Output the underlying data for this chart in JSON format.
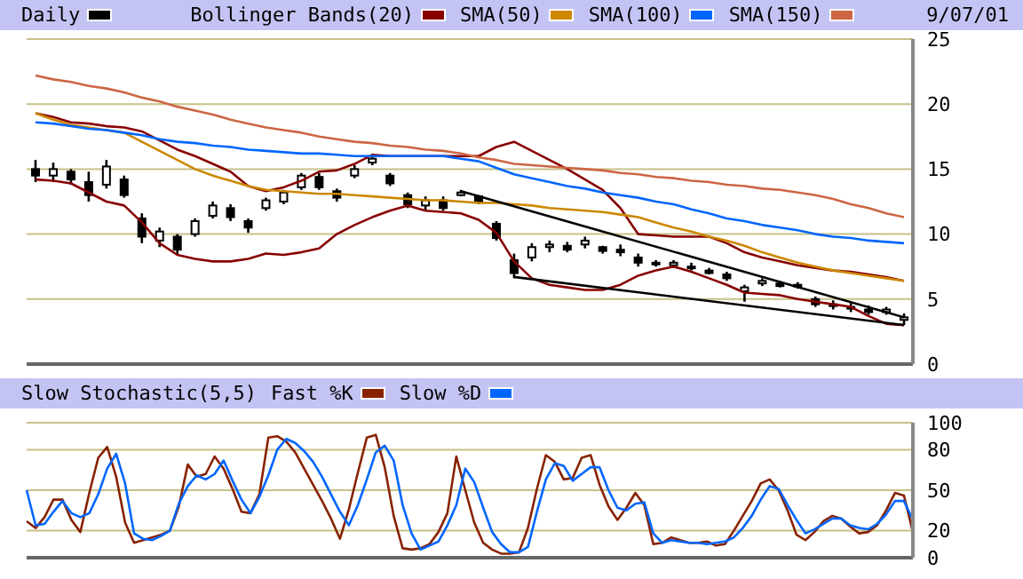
{
  "chart_data": [
    {
      "type": "candlestick",
      "title": "Daily",
      "color": "#000000",
      "legend": "top",
      "annotations": [
        "9/07/01"
      ],
      "grid": "y",
      "tick_labels": "y",
      "categories": [
        null,
        null,
        null,
        null,
        null,
        null,
        null,
        null,
        null,
        null,
        null,
        null,
        null,
        null,
        null,
        null,
        null,
        null,
        null,
        null,
        null,
        null,
        null,
        null,
        null,
        null,
        null,
        null,
        null,
        null,
        null,
        null,
        null,
        null,
        null,
        null,
        null,
        null,
        null,
        null,
        null,
        null,
        null,
        null,
        null,
        null,
        null,
        null,
        null,
        null
      ],
      "ylim": [
        0,
        25
      ],
      "yticks": [
        0,
        5,
        10,
        15,
        20,
        25
      ],
      "ohlc": [
        [
          15.0,
          15.7,
          14.0,
          14.5
        ],
        [
          14.5,
          15.5,
          14.0,
          15.0
        ],
        [
          14.8,
          15.0,
          13.8,
          14.2
        ],
        [
          14.0,
          14.8,
          12.5,
          13.0
        ],
        [
          13.8,
          15.7,
          13.5,
          15.2
        ],
        [
          14.2,
          14.5,
          12.8,
          13.0
        ],
        [
          11.2,
          11.6,
          9.3,
          9.8
        ],
        [
          9.5,
          10.5,
          9.0,
          10.2
        ],
        [
          9.8,
          10.0,
          8.4,
          8.8
        ],
        [
          10.0,
          11.2,
          9.8,
          11.0
        ],
        [
          11.4,
          12.5,
          11.2,
          12.2
        ],
        [
          12.0,
          12.3,
          11.0,
          11.3
        ],
        [
          11.0,
          11.2,
          10.1,
          10.5
        ],
        [
          12.0,
          12.8,
          11.8,
          12.6
        ],
        [
          12.5,
          13.4,
          12.3,
          13.2
        ],
        [
          13.6,
          14.7,
          13.4,
          14.5
        ],
        [
          14.4,
          14.7,
          13.4,
          13.6
        ],
        [
          13.3,
          13.5,
          12.5,
          12.8
        ],
        [
          14.5,
          15.3,
          14.3,
          15.0
        ],
        [
          15.5,
          16.1,
          15.3,
          15.8
        ],
        [
          14.5,
          14.7,
          13.7,
          13.9
        ],
        [
          13.0,
          13.2,
          12.0,
          12.3
        ],
        [
          12.2,
          12.9,
          11.8,
          12.6
        ],
        [
          12.6,
          12.9,
          11.8,
          12.0
        ],
        [
          13.0,
          13.4,
          12.9,
          13.2
        ],
        [
          12.9,
          13.0,
          12.3,
          12.5
        ],
        [
          10.8,
          11.0,
          9.5,
          9.7
        ],
        [
          8.0,
          8.5,
          6.6,
          7.0
        ],
        [
          8.2,
          9.3,
          7.9,
          9.0
        ],
        [
          9.0,
          9.5,
          8.6,
          9.2
        ],
        [
          9.1,
          9.4,
          8.6,
          8.8
        ],
        [
          9.2,
          9.8,
          8.9,
          9.5
        ],
        [
          9.0,
          9.1,
          8.5,
          8.7
        ],
        [
          8.8,
          9.2,
          8.3,
          8.6
        ],
        [
          8.2,
          8.5,
          7.5,
          7.8
        ],
        [
          7.8,
          8.0,
          7.5,
          7.7
        ],
        [
          7.6,
          8.0,
          7.4,
          7.8
        ],
        [
          7.5,
          7.8,
          7.2,
          7.4
        ],
        [
          7.2,
          7.4,
          6.9,
          7.0
        ],
        [
          6.9,
          7.1,
          6.4,
          6.6
        ],
        [
          5.6,
          6.1,
          4.8,
          5.9
        ],
        [
          6.2,
          6.6,
          6.0,
          6.4
        ],
        [
          6.2,
          6.4,
          5.9,
          6.0
        ],
        [
          6.0,
          6.3,
          5.8,
          6.1
        ],
        [
          5.0,
          5.2,
          4.4,
          4.6
        ],
        [
          4.6,
          4.9,
          4.2,
          4.5
        ],
        [
          4.4,
          4.7,
          4.0,
          4.3
        ],
        [
          4.2,
          4.5,
          3.8,
          4.0
        ],
        [
          4.0,
          4.4,
          3.8,
          4.2
        ],
        [
          3.4,
          3.9,
          3.0,
          3.6
        ]
      ],
      "series": [
        {
          "name": "Bollinger Bands(20)",
          "type": "line",
          "color": "#880000",
          "values": [
            19.3,
            19.0,
            18.6,
            18.5,
            18.3,
            18.2,
            17.9,
            17.2,
            16.5,
            16.0,
            15.4,
            14.8,
            13.7,
            13.3,
            13.6,
            14.1,
            14.8,
            14.9,
            15.4,
            16.1,
            16.0,
            16.0,
            16.0,
            16.0,
            16.0,
            16.0,
            16.7,
            17.1,
            16.4,
            15.7,
            15.0,
            14.2,
            13.4,
            12.0,
            10.0,
            9.9,
            9.8,
            9.8,
            9.8,
            9.3,
            8.6,
            8.2,
            7.9,
            7.6,
            7.4,
            7.2,
            7.1,
            6.9,
            6.7,
            6.4
          ]
        },
        {
          "type": "line",
          "color": "#880000",
          "values": [
            14.2,
            14.1,
            13.9,
            13.2,
            12.5,
            12.2,
            10.9,
            9.3,
            8.4,
            8.1,
            7.9,
            7.9,
            8.1,
            8.5,
            8.4,
            8.6,
            8.9,
            10.0,
            10.7,
            11.3,
            11.8,
            12.2,
            11.8,
            11.7,
            11.6,
            11.1,
            10.1,
            7.9,
            6.6,
            6.1,
            5.9,
            5.7,
            5.7,
            6.1,
            6.8,
            7.2,
            7.5,
            7.1,
            6.6,
            6.1,
            5.5,
            5.4,
            5.3,
            5.0,
            4.8,
            4.6,
            4.4,
            3.7,
            3.1,
            3.0
          ]
        },
        {
          "name": "SMA(50)",
          "type": "line",
          "color": "#cc8800",
          "values": [
            19.3,
            18.8,
            18.4,
            18.2,
            18.0,
            17.8,
            17.1,
            16.4,
            15.7,
            15.0,
            14.5,
            14.1,
            13.7,
            13.4,
            13.3,
            13.2,
            13.1,
            13.1,
            13.0,
            12.9,
            12.8,
            12.7,
            12.6,
            12.6,
            12.5,
            12.4,
            12.4,
            12.3,
            12.2,
            12.0,
            11.9,
            11.8,
            11.7,
            11.5,
            11.3,
            10.9,
            10.5,
            10.2,
            9.8,
            9.5,
            9.1,
            8.6,
            8.2,
            7.8,
            7.5,
            7.2,
            7.0,
            6.8,
            6.6,
            6.4
          ]
        },
        {
          "name": "SMA(100)",
          "type": "line",
          "color": "#0066ff",
          "values": [
            18.6,
            18.5,
            18.3,
            18.1,
            18.0,
            17.8,
            17.6,
            17.3,
            17.1,
            17.0,
            16.8,
            16.7,
            16.5,
            16.4,
            16.3,
            16.2,
            16.2,
            16.1,
            16.0,
            16.0,
            16.0,
            16.0,
            16.0,
            16.0,
            15.8,
            15.6,
            15.1,
            14.6,
            14.3,
            14.0,
            13.7,
            13.5,
            13.2,
            13.0,
            12.8,
            12.5,
            12.3,
            11.9,
            11.6,
            11.2,
            11.0,
            10.7,
            10.5,
            10.3,
            10.0,
            9.8,
            9.7,
            9.5,
            9.4,
            9.3
          ]
        },
        {
          "name": "SMA(150)",
          "type": "line",
          "color": "#cc6644",
          "values": [
            22.2,
            21.9,
            21.7,
            21.4,
            21.2,
            20.9,
            20.5,
            20.2,
            19.8,
            19.5,
            19.2,
            18.8,
            18.5,
            18.2,
            18.0,
            17.8,
            17.5,
            17.3,
            17.1,
            17.0,
            16.8,
            16.7,
            16.5,
            16.4,
            16.2,
            15.9,
            15.7,
            15.4,
            15.3,
            15.2,
            15.1,
            15.0,
            14.9,
            14.7,
            14.6,
            14.4,
            14.3,
            14.1,
            14.0,
            13.8,
            13.7,
            13.5,
            13.4,
            13.2,
            13.0,
            12.7,
            12.3,
            12.0,
            11.6,
            11.3
          ]
        },
        {
          "type": "line",
          "color": "#000000",
          "values": [
            null,
            null,
            null,
            null,
            null,
            null,
            null,
            null,
            null,
            null,
            null,
            null,
            null,
            null,
            null,
            null,
            null,
            null,
            null,
            null,
            null,
            null,
            null,
            null,
            13.3,
            null,
            null,
            null,
            null,
            null,
            null,
            null,
            null,
            null,
            null,
            null,
            null,
            null,
            null,
            null,
            null,
            null,
            null,
            null,
            null,
            null,
            null,
            null,
            null,
            3.6
          ]
        },
        {
          "type": "line",
          "color": "#000000",
          "values": [
            null,
            null,
            null,
            null,
            null,
            null,
            null,
            null,
            null,
            null,
            null,
            null,
            null,
            null,
            null,
            null,
            null,
            null,
            null,
            null,
            null,
            null,
            null,
            null,
            null,
            null,
            null,
            6.7,
            null,
            null,
            null,
            null,
            null,
            null,
            null,
            null,
            null,
            null,
            null,
            null,
            null,
            null,
            null,
            null,
            null,
            null,
            null,
            null,
            null,
            3.0
          ]
        }
      ]
    },
    {
      "type": "line",
      "title": "Slow Stochastic(5,5)",
      "legend": "top",
      "grid": "y",
      "tick_labels": "y",
      "categories": [
        null,
        null,
        null,
        null,
        null,
        null,
        null,
        null,
        null,
        null,
        null,
        null,
        null,
        null,
        null,
        null,
        null,
        null,
        null,
        null,
        null,
        null,
        null,
        null,
        null,
        null,
        null,
        null,
        null,
        null,
        null,
        null,
        null,
        null,
        null,
        null,
        null,
        null,
        null,
        null,
        null,
        null,
        null,
        null,
        null,
        null,
        null,
        null,
        null,
        null,
        null,
        null,
        null,
        null,
        null,
        null,
        null,
        null,
        null,
        null,
        null,
        null,
        null,
        null,
        null,
        null,
        null,
        null,
        null,
        null,
        null,
        null,
        null,
        null,
        null,
        null,
        null,
        null,
        null,
        null,
        null,
        null,
        null,
        null,
        null,
        null,
        null,
        null,
        null,
        null,
        null,
        null,
        null,
        null,
        null,
        null,
        null,
        null,
        null,
        null
      ],
      "ylim": [
        0,
        100
      ],
      "yticks": [
        0,
        20,
        50,
        80,
        100
      ],
      "series": [
        {
          "name": "Fast %K",
          "color": "#882200",
          "values": [
            27,
            22,
            30,
            43,
            43,
            28,
            19,
            48,
            74,
            82,
            60,
            26,
            11,
            13,
            15,
            17,
            20,
            38,
            69,
            60,
            62,
            75,
            66,
            51,
            34,
            33,
            47,
            89,
            90,
            86,
            78,
            66,
            54,
            42,
            29,
            14,
            36,
            63,
            89,
            91,
            67,
            31,
            7,
            6,
            7,
            10,
            19,
            33,
            75,
            50,
            26,
            11,
            6,
            3,
            3,
            4,
            22,
            51,
            76,
            71,
            58,
            59,
            74,
            76,
            54,
            38,
            28,
            37,
            48,
            39,
            10,
            11,
            15,
            13,
            11,
            11,
            12,
            9,
            10,
            20,
            31,
            42,
            55,
            58,
            50,
            35,
            17,
            13,
            19,
            27,
            31,
            29,
            23,
            18,
            19,
            24,
            35,
            48,
            46,
            19
          ]
        },
        {
          "name": "Slow %D",
          "color": "#0066ff",
          "values": [
            50,
            24,
            25,
            34,
            42,
            33,
            30,
            33,
            47,
            66,
            77,
            55,
            18,
            14,
            13,
            16,
            20,
            40,
            53,
            61,
            58,
            62,
            72,
            57,
            43,
            33,
            45,
            61,
            80,
            88,
            85,
            79,
            71,
            60,
            47,
            34,
            24,
            39,
            58,
            78,
            83,
            72,
            39,
            18,
            6,
            9,
            12,
            24,
            39,
            66,
            56,
            37,
            19,
            10,
            4,
            4,
            8,
            34,
            58,
            70,
            68,
            57,
            62,
            67,
            67,
            50,
            37,
            35,
            40,
            41,
            18,
            11,
            13,
            12,
            11,
            11,
            10,
            11,
            12,
            15,
            22,
            31,
            43,
            53,
            51,
            39,
            28,
            18,
            21,
            25,
            29,
            29,
            24,
            22,
            21,
            25,
            32,
            42,
            42,
            28
          ]
        }
      ]
    }
  ]
}
